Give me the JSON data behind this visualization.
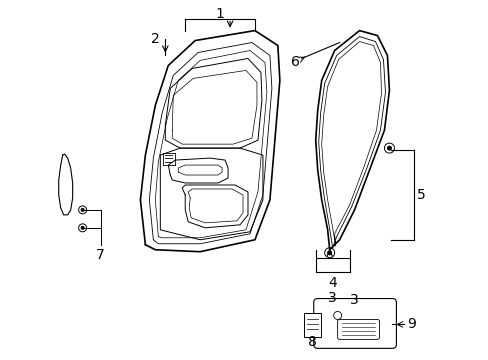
{
  "background": "#ffffff",
  "line_color": "#000000",
  "font_size": 9,
  "lw_main": 1.0,
  "lw_inner": 0.6
}
